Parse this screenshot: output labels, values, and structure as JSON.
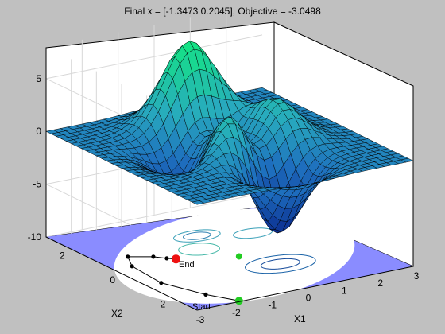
{
  "figure": {
    "title": "Final x = [-1.3473 0.2045], Objective = -3.0498",
    "colors": {
      "background": "#c0c0c0",
      "axes_face": "#ffffff",
      "grid": "#d8d8d8",
      "disk_fill": "#8a8cff",
      "disk_inner": "#ffffff",
      "path": "#000000",
      "start_marker": "#22cc22",
      "end_marker": "#ee1111"
    }
  },
  "chart_data": {
    "type": "surface",
    "title": "Final x = [-1.3473 0.2045], Objective = -3.0498",
    "xlabel": "X1",
    "ylabel": "X2",
    "zlabel": "",
    "xlim": [
      -3,
      3
    ],
    "ylim": [
      -3,
      3
    ],
    "zlim": [
      -10,
      8
    ],
    "x_ticks": [
      "-3",
      "-2",
      "-1",
      "0",
      "1",
      "2",
      "3"
    ],
    "y_ticks": [
      "2",
      "0",
      "-2"
    ],
    "z_ticks": [
      "5",
      "0",
      "-5",
      "-10"
    ],
    "surface_function": "peaks",
    "colormap": "summer-like (green-cyan-blue)",
    "grid": true,
    "contour_plane_z": -10,
    "constraint": "disk of radius 3 on the contour plane",
    "path_points": [
      {
        "x": -1.8,
        "y": -2.95
      },
      {
        "x": -2.2,
        "y": -2.2
      },
      {
        "x": -2.6,
        "y": -1.0
      },
      {
        "x": -2.5,
        "y": 0.3
      },
      {
        "x": -2.2,
        "y": 0.9
      },
      {
        "x": -1.7,
        "y": 0.6
      },
      {
        "x": -1.5,
        "y": 0.35
      },
      {
        "x": -1.3473,
        "y": 0.2045
      }
    ],
    "start_label": "Start",
    "end_label": "End",
    "final_x": [
      -1.3473,
      0.2045
    ],
    "objective": -3.0498
  }
}
